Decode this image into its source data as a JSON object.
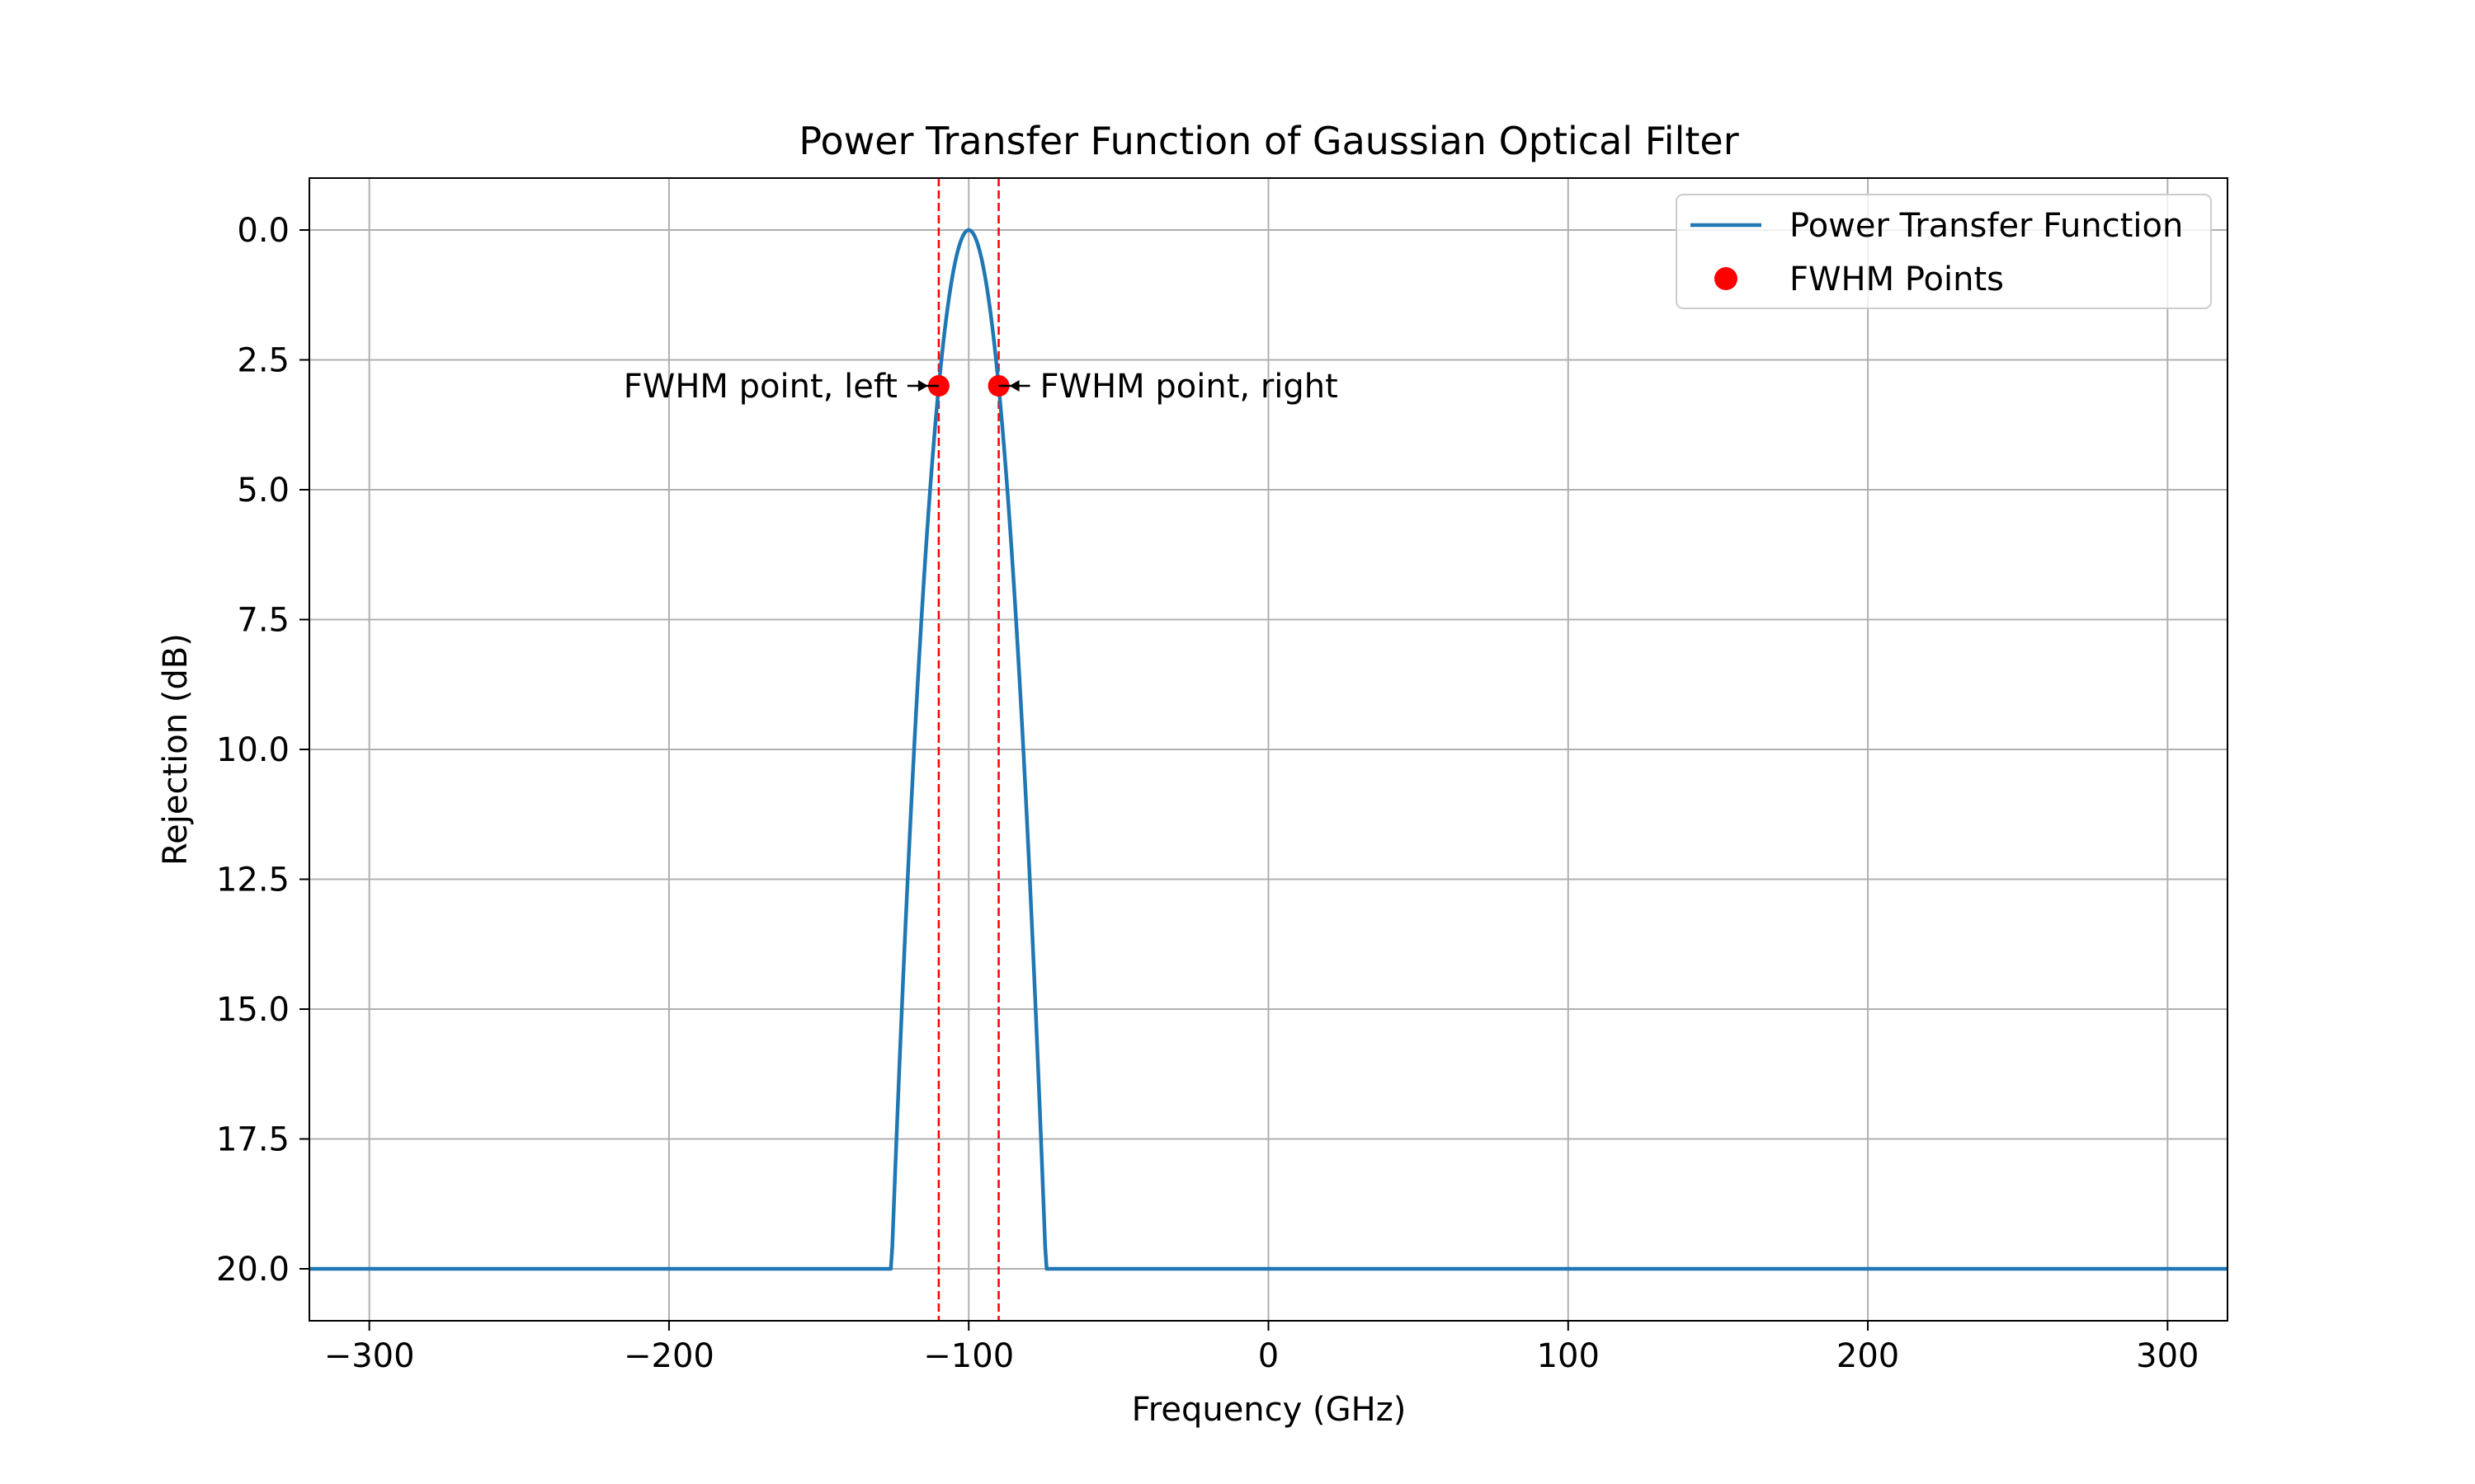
{
  "chart_data": {
    "type": "line",
    "title": "Power Transfer Function of Gaussian Optical Filter",
    "xlabel": "Frequency (GHz)",
    "ylabel": "Rejection (dB)",
    "xlim": [
      -320,
      320
    ],
    "ylim": [
      21,
      -1
    ],
    "y_inverted": true,
    "xticks": [
      -300,
      -200,
      -100,
      0,
      100,
      200,
      300
    ],
    "xtick_labels": [
      "−300",
      "−200",
      "−100",
      "0",
      "100",
      "200",
      "300"
    ],
    "yticks": [
      0,
      2.5,
      5,
      7.5,
      10,
      12.5,
      15,
      17.5,
      20
    ],
    "ytick_labels": [
      "0.0",
      "2.5",
      "5.0",
      "7.5",
      "10.0",
      "12.5",
      "15.0",
      "17.5",
      "20.0"
    ],
    "grid": true,
    "legend_position": "top-right",
    "series": [
      {
        "name": "Power Transfer Function",
        "kind": "line",
        "color": "#1f77b4",
        "center": -100,
        "fwhm": 20,
        "max_rejection": 20,
        "x_range": [
          -320,
          320
        ]
      },
      {
        "name": "FWHM Points",
        "kind": "scatter",
        "color": "#ff0000",
        "points": [
          [
            -110,
            3
          ],
          [
            -90,
            3
          ]
        ]
      }
    ],
    "vlines": [
      {
        "x": -110,
        "color": "#ff0000",
        "style": "dashed"
      },
      {
        "x": -90,
        "color": "#ff0000",
        "style": "dashed"
      }
    ],
    "annotations": [
      {
        "text": "FWHM point, left",
        "x": -110,
        "y": 3,
        "side": "left"
      },
      {
        "text": "FWHM point, right",
        "x": -90,
        "y": 3,
        "side": "right"
      }
    ]
  }
}
